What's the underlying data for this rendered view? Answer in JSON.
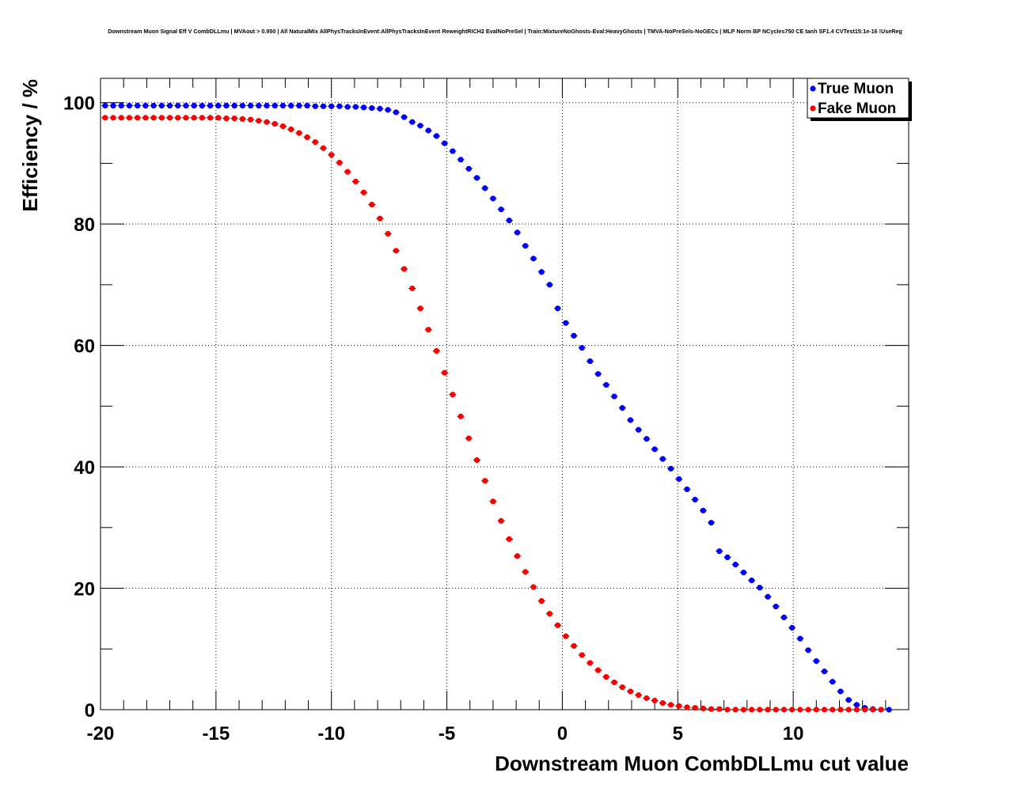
{
  "chart_data": {
    "type": "scatter",
    "title": "Downstream Muon Signal Eff V CombDLLmu | MVAout > 0.950 | All NaturalMix AllPhysTracksInEvent:AllPhysTracksInEvent ReweightRICH2 EvalNoPreSel | Train:MixtureNoGhosts-Eval:HeavyGhosts | TMVA-NoPreSels-NoGECs | MLP Norm BP NCycles750 CE tanh SF1.4 CVTest15:1e-16 !UseReg",
    "xlabel": "Downstream Muon CombDLLmu cut value",
    "ylabel": "Efficiency / %",
    "xlim": [
      -20,
      15
    ],
    "ylim": [
      0,
      104
    ],
    "xticks": [
      -20,
      -15,
      -10,
      -5,
      0,
      5,
      10
    ],
    "xtick_labels": [
      "-20",
      "-15",
      "-10",
      "-5",
      "0",
      "5",
      "10"
    ],
    "yticks": [
      0,
      20,
      40,
      60,
      80,
      100
    ],
    "ytick_labels": [
      "0",
      "20",
      "40",
      "60",
      "80",
      "100"
    ],
    "grid": true,
    "legend_position": "top-right",
    "series": [
      {
        "name": "True Muon",
        "color": "#0000ff",
        "x": [
          -19.8,
          -19.45,
          -19.1,
          -18.75,
          -18.4,
          -18.05,
          -17.7,
          -17.35,
          -17.0,
          -16.65,
          -16.3,
          -15.95,
          -15.6,
          -15.25,
          -14.9,
          -14.55,
          -14.2,
          -13.85,
          -13.5,
          -13.15,
          -12.8,
          -12.45,
          -12.1,
          -11.75,
          -11.4,
          -11.05,
          -10.7,
          -10.35,
          -10.0,
          -9.65,
          -9.3,
          -8.95,
          -8.6,
          -8.25,
          -7.9,
          -7.55,
          -7.2,
          -6.85,
          -6.5,
          -6.15,
          -5.8,
          -5.45,
          -5.1,
          -4.75,
          -4.4,
          -4.05,
          -3.7,
          -3.35,
          -3.0,
          -2.65,
          -2.3,
          -1.95,
          -1.6,
          -1.25,
          -0.9,
          -0.55,
          -0.2,
          0.15,
          0.5,
          0.85,
          1.2,
          1.55,
          1.9,
          2.25,
          2.6,
          2.95,
          3.3,
          3.65,
          4.0,
          4.35,
          4.7,
          5.05,
          5.4,
          5.75,
          6.1,
          6.45,
          6.8,
          7.15,
          7.5,
          7.85,
          8.2,
          8.55,
          8.9,
          9.25,
          9.6,
          9.95,
          10.3,
          10.65,
          11.0,
          11.35,
          11.7,
          12.05,
          12.4,
          12.75,
          13.1,
          13.45,
          13.8,
          14.15
        ],
        "y": [
          99.5,
          99.5,
          99.5,
          99.5,
          99.5,
          99.5,
          99.5,
          99.5,
          99.5,
          99.5,
          99.5,
          99.5,
          99.5,
          99.5,
          99.5,
          99.5,
          99.5,
          99.5,
          99.5,
          99.5,
          99.5,
          99.5,
          99.5,
          99.5,
          99.5,
          99.5,
          99.4,
          99.4,
          99.4,
          99.4,
          99.3,
          99.3,
          99.2,
          99.1,
          99.0,
          98.8,
          98.4,
          97.6,
          96.8,
          96.2,
          95.4,
          94.5,
          93.3,
          92.0,
          90.6,
          89.1,
          87.6,
          85.9,
          84.2,
          82.4,
          80.6,
          78.6,
          76.4,
          74.3,
          72.1,
          70.0,
          66.1,
          63.7,
          61.6,
          59.6,
          57.4,
          55.3,
          53.5,
          51.6,
          49.7,
          47.7,
          46.1,
          44.6,
          42.9,
          41.3,
          39.7,
          38.0,
          36.3,
          34.6,
          32.8,
          30.8,
          26.1,
          25.1,
          23.9,
          22.6,
          21.3,
          20.1,
          18.6,
          17.0,
          15.2,
          13.5,
          11.7,
          9.8,
          8.0,
          6.3,
          4.6,
          3.0,
          1.6,
          0.8,
          0.3,
          0.1,
          0.0,
          0.0
        ]
      },
      {
        "name": "Fake Muon",
        "color": "#ff0000",
        "x": [
          -19.8,
          -19.45,
          -19.1,
          -18.75,
          -18.4,
          -18.05,
          -17.7,
          -17.35,
          -17.0,
          -16.65,
          -16.3,
          -15.95,
          -15.6,
          -15.25,
          -14.9,
          -14.55,
          -14.2,
          -13.85,
          -13.5,
          -13.15,
          -12.8,
          -12.45,
          -12.1,
          -11.75,
          -11.4,
          -11.05,
          -10.7,
          -10.35,
          -10.0,
          -9.65,
          -9.3,
          -8.95,
          -8.6,
          -8.25,
          -7.9,
          -7.55,
          -7.2,
          -6.85,
          -6.5,
          -6.15,
          -5.8,
          -5.45,
          -5.1,
          -4.75,
          -4.4,
          -4.05,
          -3.7,
          -3.35,
          -3.0,
          -2.65,
          -2.3,
          -1.95,
          -1.6,
          -1.25,
          -0.9,
          -0.55,
          -0.2,
          0.15,
          0.5,
          0.85,
          1.2,
          1.55,
          1.9,
          2.25,
          2.6,
          2.95,
          3.3,
          3.65,
          4.0,
          4.35,
          4.7,
          5.05,
          5.4,
          5.75,
          6.1,
          6.45,
          6.8,
          7.15,
          7.5,
          7.85,
          8.2,
          8.55,
          8.9,
          9.25,
          9.6,
          9.95,
          10.3,
          10.65,
          11.0,
          11.35,
          11.7,
          12.05,
          12.4,
          12.75,
          13.1,
          13.45,
          13.8
        ],
        "y": [
          97.5,
          97.5,
          97.5,
          97.5,
          97.5,
          97.5,
          97.5,
          97.5,
          97.5,
          97.5,
          97.5,
          97.5,
          97.5,
          97.5,
          97.5,
          97.4,
          97.4,
          97.3,
          97.2,
          97.0,
          96.8,
          96.5,
          96.1,
          95.6,
          95.0,
          94.3,
          93.5,
          92.5,
          91.4,
          90.1,
          88.6,
          87.0,
          85.2,
          83.2,
          80.9,
          78.4,
          75.6,
          72.6,
          69.4,
          66.1,
          62.6,
          59.1,
          55.5,
          51.9,
          48.3,
          44.7,
          41.1,
          37.7,
          34.3,
          31.1,
          28.1,
          25.3,
          22.7,
          20.2,
          17.9,
          15.8,
          13.9,
          12.1,
          10.5,
          9.0,
          7.7,
          6.5,
          5.4,
          4.5,
          3.7,
          3.0,
          2.4,
          1.9,
          1.5,
          1.1,
          0.8,
          0.6,
          0.4,
          0.3,
          0.2,
          0.1,
          0.1,
          0.0,
          0.0,
          0.0,
          0.0,
          0.0,
          0.0,
          0.0,
          0.0,
          0.0,
          0.0,
          0.0,
          0.0,
          0.0,
          0.0,
          0.0,
          0.0,
          0.0,
          0.0,
          0.0,
          0.0
        ]
      }
    ]
  }
}
